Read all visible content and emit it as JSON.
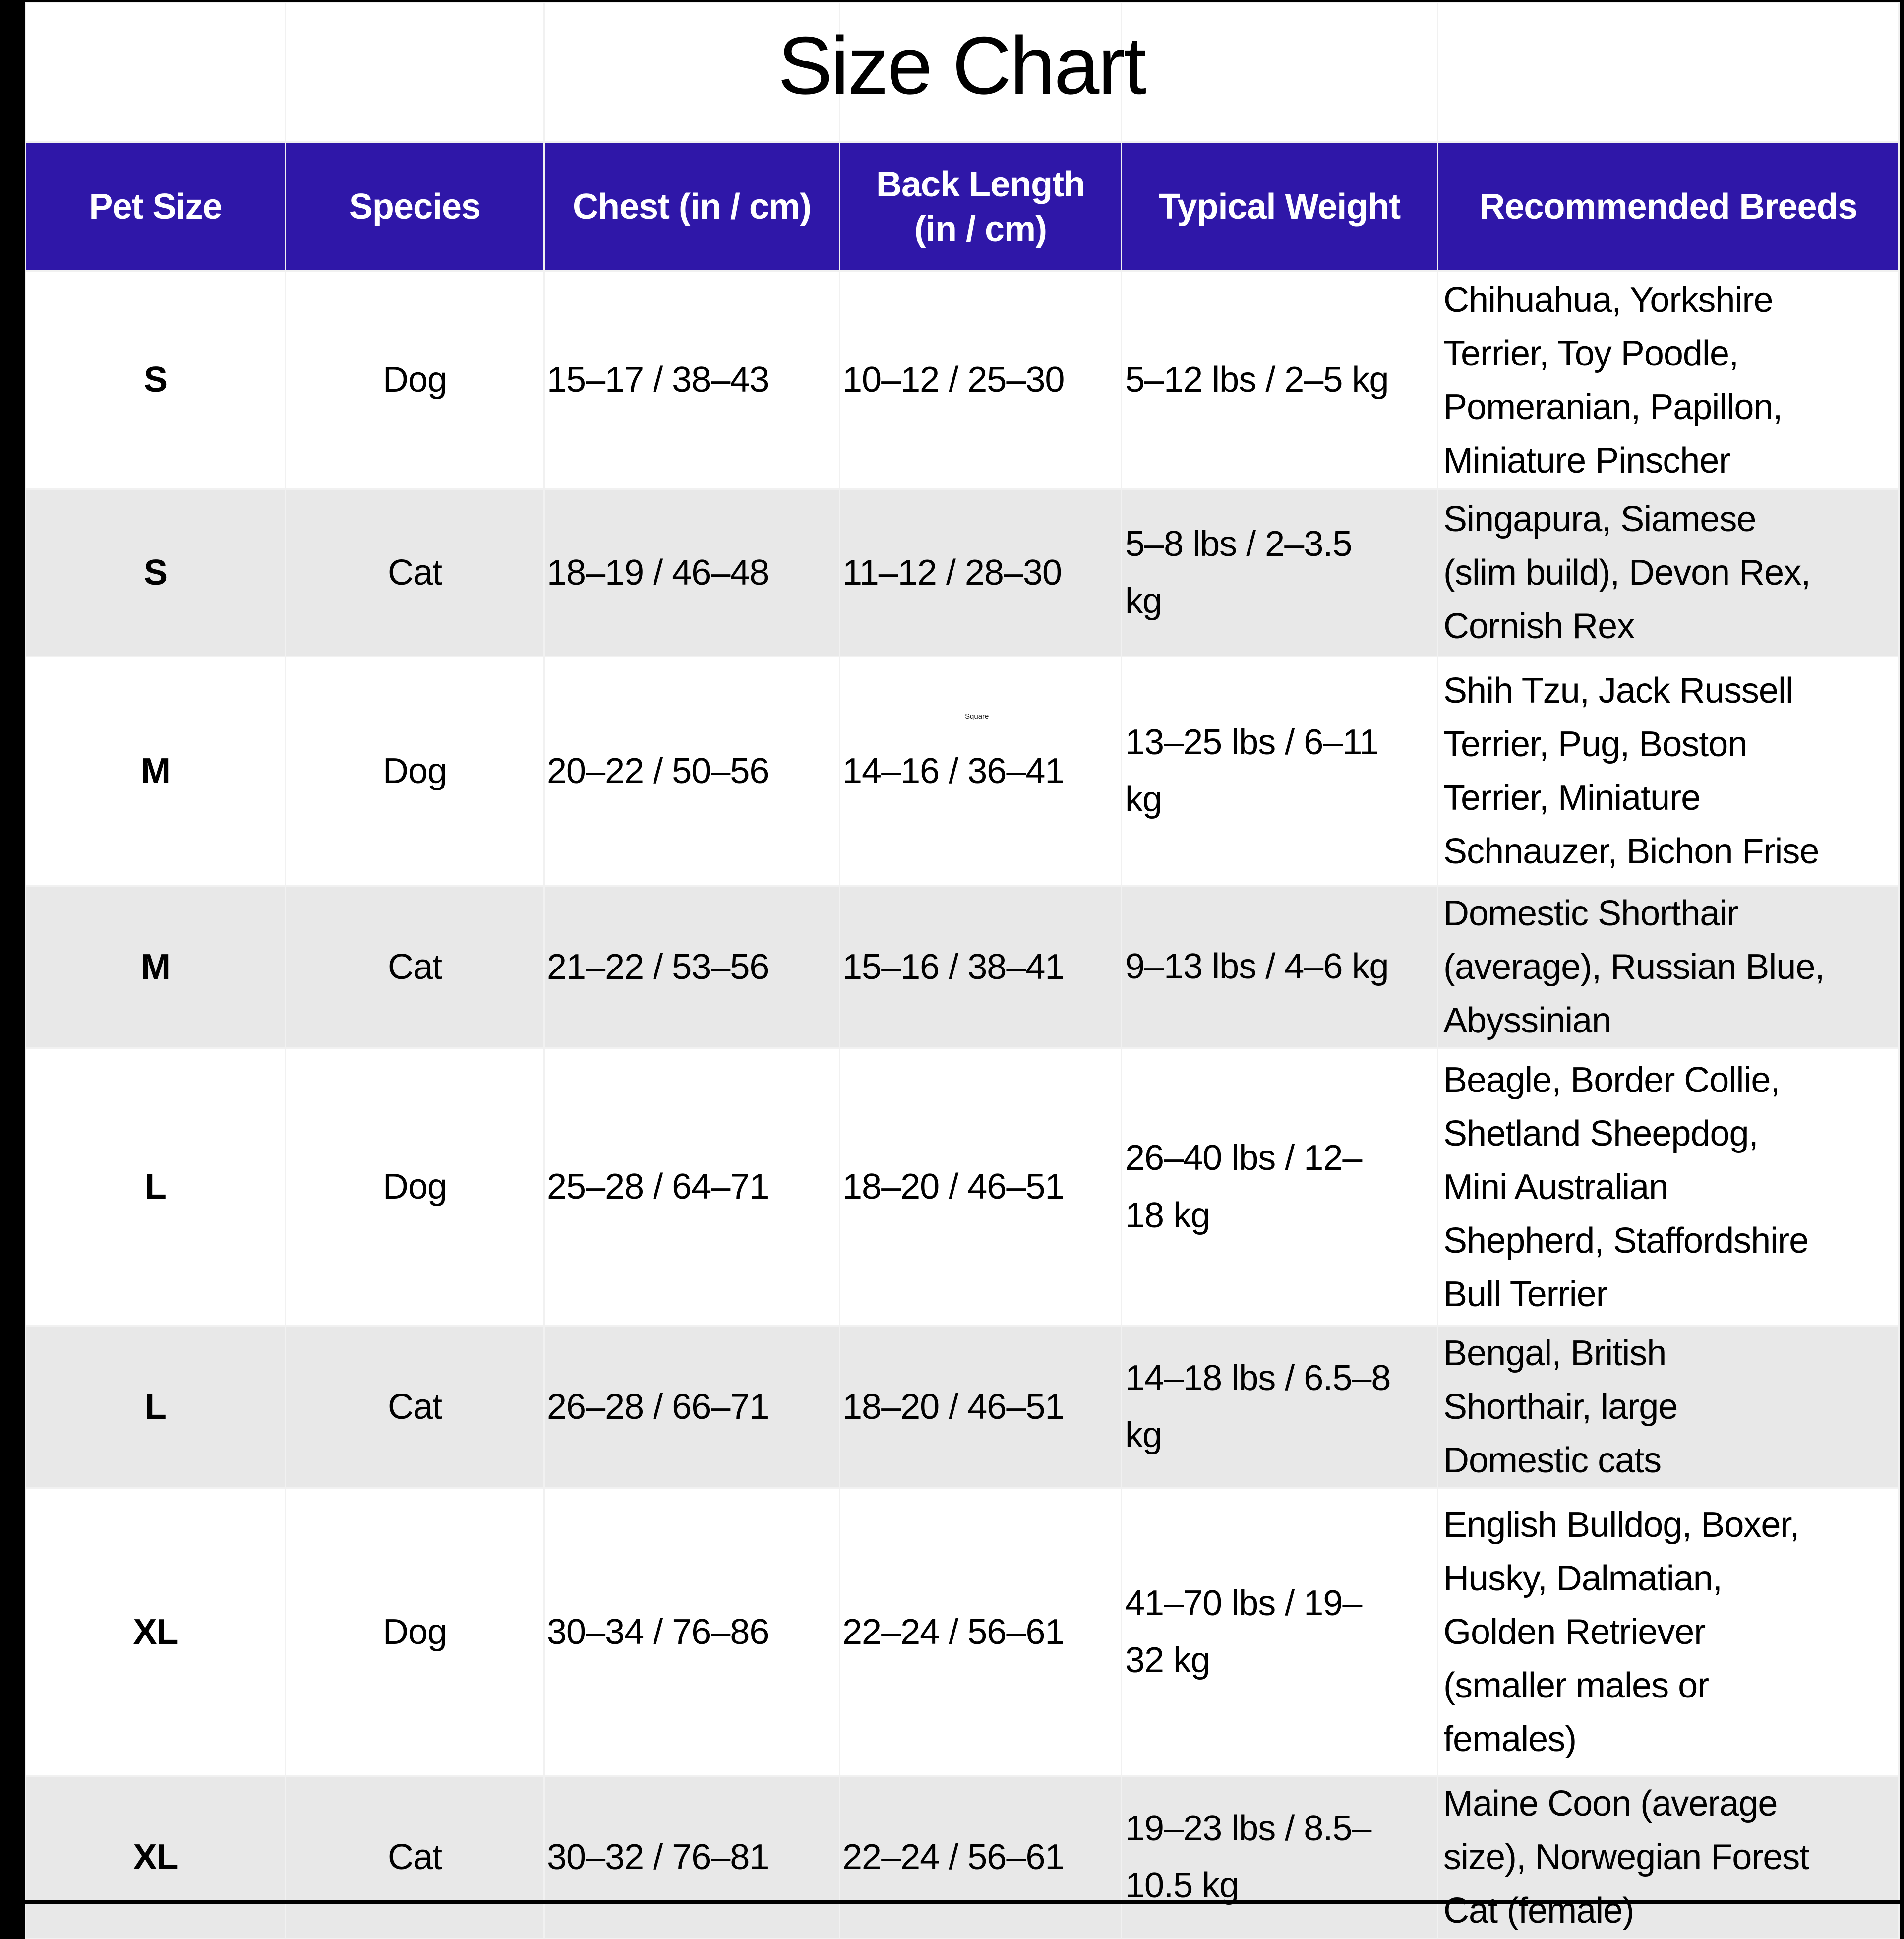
{
  "title": "Size Chart",
  "watermark": "Square",
  "colors": {
    "header_bg": "#2F17A8",
    "header_text": "#FFFFFF",
    "row_bg": "#FFFFFF",
    "row_alt_bg": "#E8E8E8",
    "grid_line": "#F1F1F1",
    "frame_edge": "#000000",
    "body_text": "#000000"
  },
  "table": {
    "columns": [
      "Pet Size",
      "Species",
      "Chest (in / cm)",
      "Back Length\n(in / cm)",
      "Typical Weight",
      "Recommended Breeds"
    ],
    "rows": [
      {
        "pet_size": "S",
        "species": "Dog",
        "chest": "15–17 / 38–43",
        "back_length": "10–12 / 25–30",
        "weight": "5–12 lbs / 2–5 kg",
        "breeds": "Chihuahua, Yorkshire\nTerrier, Toy Poodle,\nPomeranian, Papillon,\nMiniature Pinscher"
      },
      {
        "pet_size": "S",
        "species": "Cat",
        "chest": "18–19 / 46–48",
        "back_length": "11–12 / 28–30",
        "weight": "5–8 lbs / 2–3.5\nkg",
        "breeds": "Singapura, Siamese\n(slim build), Devon Rex,\nCornish Rex"
      },
      {
        "pet_size": "M",
        "species": "Dog",
        "chest": "20–22 / 50–56",
        "back_length": "14–16 / 36–41",
        "weight": "13–25 lbs / 6–11\nkg",
        "breeds": "Shih Tzu, Jack Russell\nTerrier, Pug, Boston\nTerrier, Miniature\nSchnauzer, Bichon Frise"
      },
      {
        "pet_size": "M",
        "species": "Cat",
        "chest": "21–22 / 53–56",
        "back_length": "15–16 / 38–41",
        "weight": "9–13 lbs / 4–6 kg",
        "breeds": "Domestic Shorthair\n(average), Russian Blue,\nAbyssinian"
      },
      {
        "pet_size": "L",
        "species": "Dog",
        "chest": "25–28 / 64–71",
        "back_length": "18–20 / 46–51",
        "weight": "26–40 lbs / 12–\n18 kg",
        "breeds": "Beagle, Border Collie,\nShetland Sheepdog,\nMini Australian\nShepherd, Staffordshire\nBull Terrier"
      },
      {
        "pet_size": "L",
        "species": "Cat",
        "chest": "26–28 / 66–71",
        "back_length": "18–20 / 46–51",
        "weight": "14–18 lbs / 6.5–8\nkg",
        "breeds": "Bengal, British\nShorthair, large\nDomestic cats"
      },
      {
        "pet_size": "XL",
        "species": "Dog",
        "chest": "30–34 / 76–86",
        "back_length": "22–24 / 56–61",
        "weight": "41–70 lbs / 19–\n32 kg",
        "breeds": "English Bulldog, Boxer,\nHusky, Dalmatian,\nGolden Retriever\n(smaller males or\nfemales)"
      },
      {
        "pet_size": "XL",
        "species": "Cat",
        "chest": "30–32 / 76–81",
        "back_length": "22–24 / 56–61",
        "weight": "19–23 lbs / 8.5–\n10.5 kg",
        "breeds": "Maine Coon (average\nsize), Norwegian Forest\nCat (female)"
      }
    ]
  }
}
